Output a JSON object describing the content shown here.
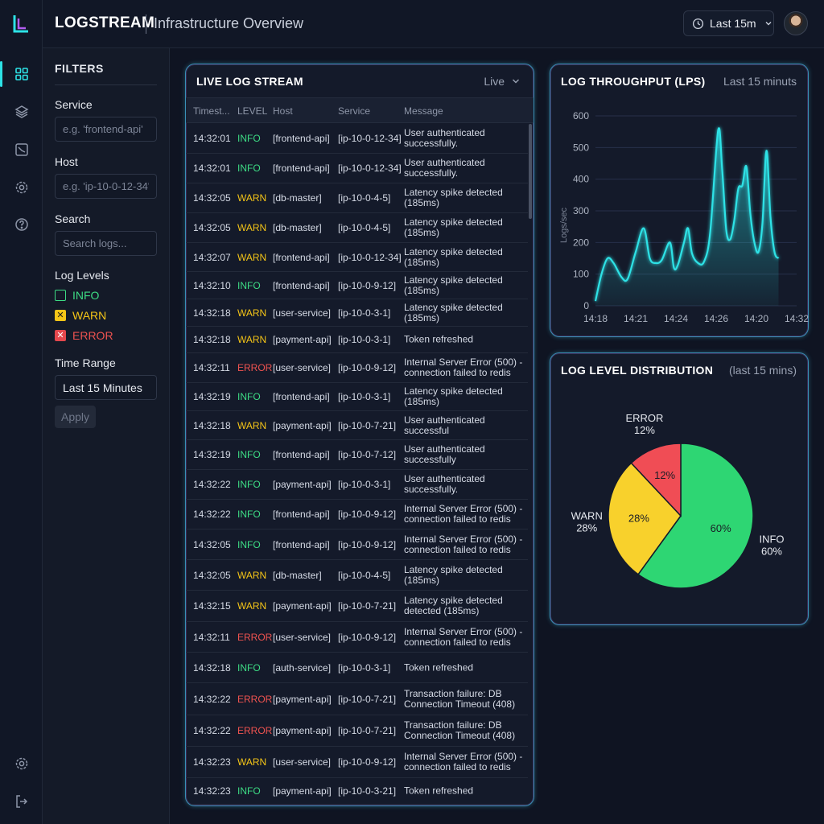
{
  "topbar": {
    "brand": "LOGSTREAM",
    "title": "Infrastructure Overview",
    "time_range": "Last 15m"
  },
  "rail": {
    "icons": [
      "logo-icon",
      "dashboard-icon",
      "layers-icon",
      "chart-icon",
      "settings-icon",
      "help-icon",
      "settings-icon",
      "logout-icon"
    ]
  },
  "filters": {
    "title": "FILTERS",
    "service_label": "Service",
    "service_placeholder": "e.g. 'frontend-api'",
    "host_label": "Host",
    "host_placeholder": "e.g. 'ip-10-0-12-34'",
    "search_label": "Search",
    "search_placeholder": "Search logs...",
    "levels_label": "Log Levels",
    "levels": [
      {
        "name": "INFO",
        "checked": false
      },
      {
        "name": "WARN",
        "checked": true
      },
      {
        "name": "ERROR",
        "checked": true
      }
    ],
    "time_label": "Time Range",
    "time_value": "Last 15 Minutes",
    "apply_label": "Apply"
  },
  "stream": {
    "title": "LIVE LOG STREAM",
    "mode": "Live",
    "columns": [
      "Timest...",
      "LEVEL",
      "Host",
      "Service",
      "Message"
    ],
    "rows": [
      {
        "time": "14:32:01",
        "level": "INFO",
        "host": "[frontend-api]",
        "service": "[ip-10-0-12-34]",
        "message": "User authenticated successfully.",
        "h": 37
      },
      {
        "time": "14:32:01",
        "level": "INFO",
        "host": "[frontend-api]",
        "service": "[ip-10-0-12-34]",
        "message": "User authenticated successfully.",
        "h": 37
      },
      {
        "time": "14:32:05",
        "level": "WARN",
        "host": "[db-master]",
        "service": "[ip-10-0-4-5]",
        "message": "Latency spike detected (185ms)",
        "h": 37
      },
      {
        "time": "14:32:05",
        "level": "WARN",
        "host": "[db-master]",
        "service": "[ip-10-0-4-5]",
        "message": "Latency spike detected (185ms)",
        "h": 37
      },
      {
        "time": "14:32:07",
        "level": "WARN",
        "host": "[frontend-api]",
        "service": "[ip-10-0-12-34]",
        "message": "Latency spike detected (185ms)",
        "h": 36
      },
      {
        "time": "14:32:10",
        "level": "INFO",
        "host": "[frontend-api]",
        "service": "[ip-10-0-9-12]",
        "message": "Latency spike detected (185ms)",
        "h": 34
      },
      {
        "time": "14:32:18",
        "level": "WARN",
        "host": "[user-service]",
        "service": "[ip-10-0-3-1]",
        "message": "Latency spike detected (185ms)",
        "h": 34
      },
      {
        "time": "14:32:18",
        "level": "WARN",
        "host": "[payment-api]",
        "service": "[ip-10-0-3-1]",
        "message": "Token refreshed",
        "h": 33
      },
      {
        "time": "14:32:11",
        "level": "ERROR",
        "host": "[user-service]",
        "service": "[ip-10-0-9-12]",
        "message": "Internal Server Error (500) - connection failed to redis",
        "h": 37
      },
      {
        "time": "14:32:19",
        "level": "INFO",
        "host": "[frontend-api]",
        "service": "[ip-10-0-3-1]",
        "message": "Latency spike detected (185ms)",
        "h": 35
      },
      {
        "time": "14:32:18",
        "level": "WARN",
        "host": "[payment-api]",
        "service": "[ip-10-0-7-21]",
        "message": "User authenticated successful",
        "h": 36
      },
      {
        "time": "14:32:19",
        "level": "INFO",
        "host": "[frontend-api]",
        "service": "[ip-10-0-7-12]",
        "message": "User authenticated successfully",
        "h": 37
      },
      {
        "time": "14:32:22",
        "level": "INFO",
        "host": "[payment-api]",
        "service": "[ip-10-0-3-1]",
        "message": "User authenticated successfully.",
        "h": 37
      },
      {
        "time": "14:32:22",
        "level": "INFO",
        "host": "[frontend-api]",
        "service": "[ip-10-0-9-12]",
        "message": "Internal Server Error (500) - connection failed to redis",
        "h": 37
      },
      {
        "time": "14:32:05",
        "level": "INFO",
        "host": "[frontend-api]",
        "service": "[ip-10-0-9-12]",
        "message": "Internal Server Error (500) - connection failed to redis",
        "h": 38
      },
      {
        "time": "14:32:05",
        "level": "WARN",
        "host": "[db-master]",
        "service": "[ip-10-0-4-5]",
        "message": "Latency spike detected (185ms)",
        "h": 38
      },
      {
        "time": "14:32:15",
        "level": "WARN",
        "host": "[payment-api]",
        "service": "[ip-10-0-7-21]",
        "message": "Latency spike detected detected (185ms)",
        "h": 39
      },
      {
        "time": "14:32:11",
        "level": "ERROR",
        "host": "[user-service]",
        "service": "[ip-10-0-9-12]",
        "message": "Internal Server Error (500) - connection failed to redis",
        "h": 38
      },
      {
        "time": "14:32:18",
        "level": "INFO",
        "host": "[auth-service]",
        "service": "[ip-10-0-3-1]",
        "message": "Token refreshed",
        "h": 38
      },
      {
        "time": "14:32:22",
        "level": "ERROR",
        "host": "[payment-api]",
        "service": "[ip-10-0-7-21]",
        "message": "Transaction failure: DB Connection Timeout (408)",
        "h": 40
      },
      {
        "time": "14:32:22",
        "level": "ERROR",
        "host": "[payment-api]",
        "service": "[ip-10-0-7-21]",
        "message": "Transaction failure: DB Connection Timeout (408)",
        "h": 39
      },
      {
        "time": "14:32:23",
        "level": "WARN",
        "host": "[user-service]",
        "service": "[ip-10-0-9-12]",
        "message": "Internal Server Error (500) - connection failed to redis",
        "h": 39
      },
      {
        "time": "14:32:23",
        "level": "INFO",
        "host": "[payment-api]",
        "service": "[ip-10-0-3-21]",
        "message": "Token refreshed",
        "h": 33
      }
    ]
  },
  "colors": {
    "info": "#3ddc84",
    "warn": "#f5c517",
    "error": "#ef5350",
    "accent": "#2de2e6"
  },
  "throughput": {
    "title": "LOG THROUGHPUT (LPS)",
    "subtitle": "Last 15 minuts"
  },
  "distribution": {
    "title": "LOG LEVEL DISTRIBUTION",
    "subtitle": "(last 15 mins)"
  },
  "chart_data": [
    {
      "type": "area",
      "title": "LOG THROUGHPUT (LPS)",
      "xlabel": "",
      "ylabel": "Logs/sec",
      "x_ticks": [
        "14:18",
        "14:21",
        "14:24",
        "14:26",
        "14:20",
        "14:32"
      ],
      "y_ticks": [
        0,
        100,
        200,
        300,
        400,
        500,
        600
      ],
      "ylim": [
        0,
        600
      ],
      "xlim": [
        0,
        100
      ],
      "grid": true,
      "points": [
        [
          0,
          15
        ],
        [
          3,
          100
        ],
        [
          6,
          150
        ],
        [
          9,
          135
        ],
        [
          13,
          90
        ],
        [
          16,
          85
        ],
        [
          20,
          170
        ],
        [
          24,
          245
        ],
        [
          27,
          150
        ],
        [
          30,
          135
        ],
        [
          33,
          145
        ],
        [
          37,
          200
        ],
        [
          39,
          120
        ],
        [
          41,
          130
        ],
        [
          44,
          200
        ],
        [
          46,
          245
        ],
        [
          48,
          165
        ],
        [
          51,
          135
        ],
        [
          54,
          140
        ],
        [
          57,
          230
        ],
        [
          61,
          555
        ],
        [
          63,
          430
        ],
        [
          65,
          240
        ],
        [
          67,
          210
        ],
        [
          69,
          270
        ],
        [
          71,
          370
        ],
        [
          73,
          380
        ],
        [
          75,
          440
        ],
        [
          77,
          290
        ],
        [
          79,
          200
        ],
        [
          81,
          170
        ],
        [
          83,
          260
        ],
        [
          85,
          490
        ],
        [
          87,
          280
        ],
        [
          89,
          170
        ],
        [
          91,
          150
        ]
      ],
      "colors": {
        "line": "#2de2e6"
      }
    },
    {
      "type": "pie",
      "title": "LOG LEVEL DISTRIBUTION",
      "slices": [
        {
          "label": "INFO",
          "value": 60,
          "pct_label": "60%",
          "color": "#2ed673"
        },
        {
          "label": "WARN",
          "value": 28,
          "pct_label": "28%",
          "color": "#f8d12c"
        },
        {
          "label": "ERROR",
          "value": 12,
          "pct_label": "12%",
          "color": "#f04d55"
        }
      ]
    }
  ]
}
